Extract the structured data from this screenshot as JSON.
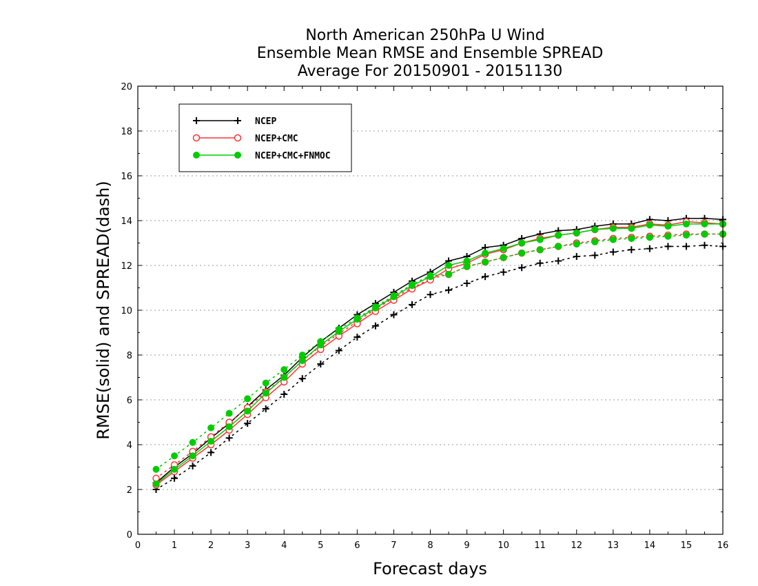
{
  "chart_data": {
    "type": "line",
    "title": [
      "North American 250hPa U Wind",
      "Ensemble Mean RMSE and Ensemble SPREAD",
      "Average For 20150901 - 20151130"
    ],
    "xlabel": "Forecast days",
    "ylabel": "RMSE(solid) and SPREAD(dash)",
    "xlim": [
      0,
      16
    ],
    "ylim": [
      0,
      20
    ],
    "xticks": [
      "0",
      "1",
      "2",
      "3",
      "4",
      "5",
      "6",
      "7",
      "8",
      "9",
      "10",
      "11",
      "12",
      "13",
      "14",
      "15",
      "16"
    ],
    "yticks": [
      "0",
      "2",
      "4",
      "6",
      "8",
      "10",
      "12",
      "14",
      "16",
      "18",
      "20"
    ],
    "grid": true,
    "legend_position": "top-left",
    "x": [
      0.5,
      1,
      1.5,
      2,
      2.5,
      3,
      3.5,
      4,
      4.5,
      5,
      5.5,
      6,
      6.5,
      7,
      7.5,
      8,
      8.5,
      9,
      9.5,
      10,
      10.5,
      11,
      11.5,
      12,
      12.5,
      13,
      13.5,
      14,
      14.5,
      15,
      15.5,
      16
    ],
    "series": [
      {
        "name": "NCEP",
        "marker": "plus",
        "color": "#000000",
        "rmse": [
          2.3,
          3.0,
          3.6,
          4.3,
          4.95,
          5.7,
          6.45,
          7.1,
          7.9,
          8.6,
          9.2,
          9.8,
          10.3,
          10.8,
          11.3,
          11.7,
          12.2,
          12.4,
          12.8,
          12.9,
          13.2,
          13.4,
          13.55,
          13.6,
          13.75,
          13.85,
          13.85,
          14.05,
          14.0,
          14.1,
          14.1,
          14.05
        ],
        "spread": [
          2.0,
          2.5,
          3.05,
          3.65,
          4.3,
          4.95,
          5.6,
          6.25,
          6.95,
          7.6,
          8.2,
          8.8,
          9.3,
          9.8,
          10.25,
          10.7,
          10.9,
          11.2,
          11.5,
          11.7,
          11.9,
          12.1,
          12.2,
          12.4,
          12.45,
          12.6,
          12.7,
          12.75,
          12.85,
          12.85,
          12.9,
          12.85
        ]
      },
      {
        "name": "NCEP+CMC",
        "marker": "open-circle",
        "color": "#ff3333",
        "rmse": [
          2.2,
          2.8,
          3.4,
          4.0,
          4.65,
          5.35,
          6.1,
          6.8,
          7.6,
          8.25,
          8.85,
          9.4,
          9.95,
          10.45,
          10.95,
          11.35,
          11.85,
          12.1,
          12.5,
          12.7,
          13.0,
          13.2,
          13.35,
          13.45,
          13.6,
          13.7,
          13.7,
          13.85,
          13.8,
          13.95,
          13.9,
          13.85
        ],
        "spread": [
          2.5,
          3.1,
          3.7,
          4.35,
          5.0,
          5.65,
          6.35,
          7.0,
          7.75,
          8.4,
          8.95,
          9.5,
          10.05,
          10.55,
          11.0,
          11.4,
          11.6,
          11.95,
          12.15,
          12.35,
          12.55,
          12.7,
          12.85,
          13.0,
          13.1,
          13.2,
          13.25,
          13.3,
          13.35,
          13.4,
          13.4,
          13.4
        ]
      },
      {
        "name": "NCEP+CMC+FNMOC",
        "marker": "filled-circle",
        "color": "#00cc00",
        "rmse": [
          2.25,
          2.9,
          3.5,
          4.15,
          4.8,
          5.5,
          6.3,
          7.0,
          7.75,
          8.45,
          9.05,
          9.6,
          10.1,
          10.6,
          11.1,
          11.5,
          12.0,
          12.2,
          12.55,
          12.75,
          13.0,
          13.15,
          13.35,
          13.45,
          13.6,
          13.65,
          13.65,
          13.8,
          13.75,
          13.85,
          13.85,
          13.85
        ],
        "spread": [
          2.9,
          3.5,
          4.1,
          4.75,
          5.4,
          6.05,
          6.75,
          7.35,
          8.0,
          8.6,
          9.15,
          9.65,
          10.15,
          10.65,
          11.15,
          11.55,
          11.6,
          11.95,
          12.15,
          12.35,
          12.55,
          12.7,
          12.85,
          12.95,
          13.05,
          13.15,
          13.2,
          13.25,
          13.3,
          13.35,
          13.4,
          13.4
        ]
      }
    ]
  }
}
